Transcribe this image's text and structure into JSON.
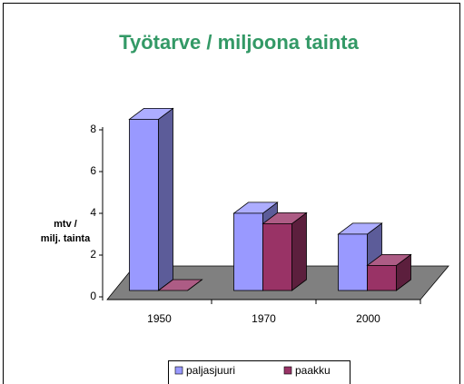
{
  "chart_data": {
    "type": "bar3d",
    "title": "Työtarve / miljoona tainta",
    "y_label": [
      "mtv /",
      "milj. tainta"
    ],
    "categories": [
      "1950",
      "1970",
      "2000"
    ],
    "series": [
      {
        "name": "paljasjuuri",
        "color": "#9999ff",
        "values": [
          8.2,
          3.7,
          2.7
        ]
      },
      {
        "name": "paakku",
        "color": "#993366",
        "values": [
          0,
          3.2,
          1.2
        ]
      }
    ],
    "ylim": [
      0,
      8
    ],
    "yticks": [
      0,
      2,
      4,
      6,
      8
    ],
    "grid": false,
    "legend": "bottom"
  }
}
